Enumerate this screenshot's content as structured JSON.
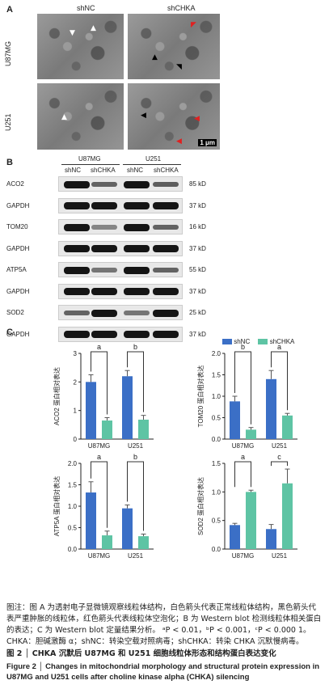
{
  "panelA": {
    "letter": "A",
    "col_labels": [
      "shNC",
      "shCHKA"
    ],
    "row_labels": [
      "U87MG",
      "U251"
    ],
    "scale_bar": "1 μm"
  },
  "panelB": {
    "letter": "B",
    "group_labels": [
      "U87MG",
      "U251"
    ],
    "lane_labels": [
      "shNC",
      "shCHKA",
      "shNC",
      "shCHKA"
    ],
    "blots": [
      {
        "protein": "ACO2",
        "kd": "85 kD",
        "intensity": [
          1.0,
          0.5,
          1.0,
          0.55
        ]
      },
      {
        "protein": "GAPDH",
        "kd": "37 kD",
        "intensity": [
          1.0,
          1.0,
          1.0,
          1.0
        ]
      },
      {
        "protein": "TOM20",
        "kd": "16 kD",
        "intensity": [
          1.0,
          0.3,
          1.0,
          0.5
        ]
      },
      {
        "protein": "GAPDH",
        "kd": "37 kD",
        "intensity": [
          1.0,
          1.0,
          1.0,
          1.0
        ]
      },
      {
        "protein": "ATP5A",
        "kd": "55 kD",
        "intensity": [
          1.0,
          0.4,
          1.0,
          0.5
        ]
      },
      {
        "protein": "GAPDH",
        "kd": "37 kD",
        "intensity": [
          1.0,
          1.0,
          1.0,
          1.0
        ]
      },
      {
        "protein": "SOD2",
        "kd": "25 kD",
        "intensity": [
          0.5,
          1.0,
          0.4,
          1.0
        ]
      },
      {
        "protein": "GAPDH",
        "kd": "37 kD",
        "intensity": [
          1.0,
          1.0,
          1.0,
          1.0
        ]
      }
    ]
  },
  "panelC": {
    "letter": "C",
    "legend": [
      "shNC",
      "shCHKA"
    ]
  },
  "colors": {
    "shNC": "#3b6fc6",
    "shCHKA": "#5ec4a4"
  },
  "chart_data": [
    {
      "type": "bar",
      "ylabel": "ACO2 蛋白相对表达",
      "categories": [
        "U87MG",
        "U251"
      ],
      "series": [
        {
          "name": "shNC",
          "values": [
            2.0,
            2.2
          ]
        },
        {
          "name": "shCHKA",
          "values": [
            0.65,
            0.68
          ]
        }
      ],
      "errors": [
        [
          0.25,
          0.2
        ],
        [
          0.1,
          0.15
        ]
      ],
      "ylim": [
        0,
        3
      ],
      "yticks": [
        0,
        1,
        2,
        3
      ],
      "sig": [
        "a",
        "b"
      ]
    },
    {
      "type": "bar",
      "ylabel": "TOM20 蛋白相对表达",
      "categories": [
        "U87MG",
        "U251"
      ],
      "series": [
        {
          "name": "shNC",
          "values": [
            0.88,
            1.4
          ]
        },
        {
          "name": "shCHKA",
          "values": [
            0.22,
            0.55
          ]
        }
      ],
      "errors": [
        [
          0.12,
          0.2
        ],
        [
          0.05,
          0.05
        ]
      ],
      "ylim": [
        0,
        2
      ],
      "yticks": [
        0.0,
        0.5,
        1.0,
        1.5,
        2.0
      ],
      "sig": [
        "b",
        "a"
      ]
    },
    {
      "type": "bar",
      "ylabel": "ATP5A 蛋白相对表达",
      "categories": [
        "U87MG",
        "U251"
      ],
      "series": [
        {
          "name": "shNC",
          "values": [
            1.32,
            0.95
          ]
        },
        {
          "name": "shCHKA",
          "values": [
            0.32,
            0.3
          ]
        }
      ],
      "errors": [
        [
          0.25,
          0.08
        ],
        [
          0.1,
          0.05
        ]
      ],
      "ylim": [
        0,
        2
      ],
      "yticks": [
        0.0,
        0.5,
        1.0,
        1.5,
        2.0
      ],
      "sig": [
        "a",
        "b"
      ]
    },
    {
      "type": "bar",
      "ylabel": "SOD2 蛋白相对表达",
      "categories": [
        "U87MG",
        "U251"
      ],
      "series": [
        {
          "name": "shNC",
          "values": [
            0.42,
            0.35
          ]
        },
        {
          "name": "shCHKA",
          "values": [
            1.0,
            1.15
          ]
        }
      ],
      "errors": [
        [
          0.03,
          0.08
        ],
        [
          0.03,
          0.25
        ]
      ],
      "ylim": [
        0,
        1.5
      ],
      "yticks": [
        0.0,
        0.5,
        1.0,
        1.5
      ],
      "sig": [
        "a",
        "c"
      ]
    }
  ],
  "caption": {
    "line1": "图注：图 A 为透射电子显微镜观察线粒体结构，白色箭头代表正常线粒体结构，黑色箭头代表严重肿胀的线粒体，红色箭头代表线粒体空泡化；B 为 Western blot 检测线粒体相关蛋白的表达；C 为 Western blot 定量结果分析。",
    "line2": "ᵃP < 0.01，ᵇP < 0.001，ᶜP < 0.000 1。CHKA：胆碱激酶 α；shNC：转染空载对照病毒；shCHKA：转染 CHKA 沉默慢病毒。",
    "title_cn": "图 2 │ CHKA 沉默后 U87MG 和 U251 细胞线粒体形态和结构蛋白表达变化",
    "title_en": "Figure 2 │ Changes in mitochondrial morphology and structural protein expression in U87MG and U251 cells after choline kinase alpha (CHKA) silencing"
  }
}
